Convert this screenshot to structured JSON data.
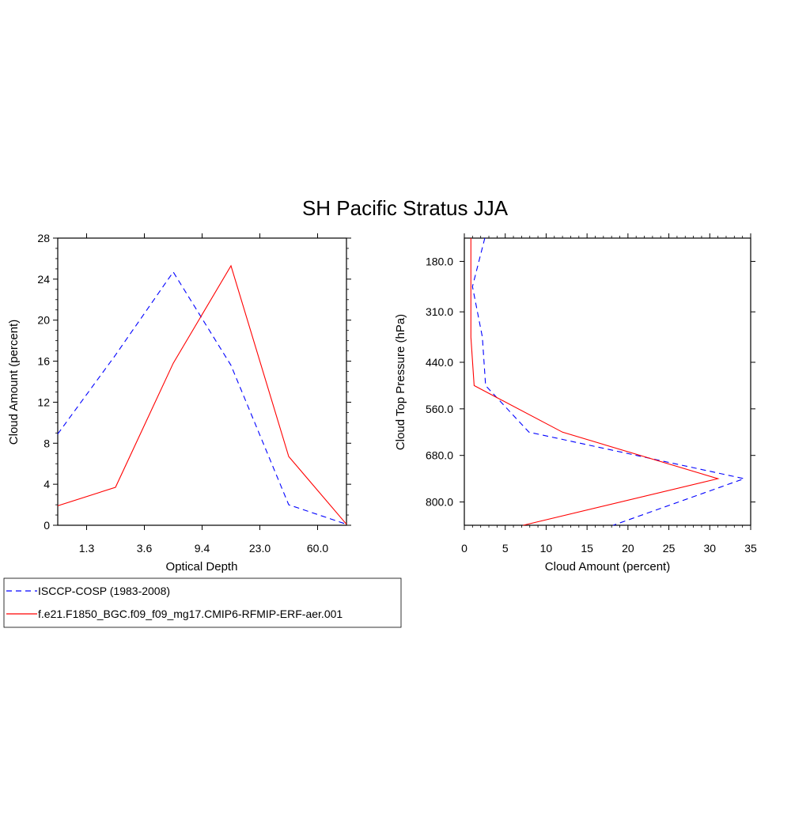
{
  "title": "SH Pacific Stratus JJA",
  "colors": {
    "isccp": "#0000ff",
    "model": "#ff0000",
    "axis": "#000000"
  },
  "legend": {
    "placement": "bottom-left",
    "entries": [
      {
        "label": "ISCCP-COSP (1983-2008)",
        "style": "dashed",
        "color": "#0000ff"
      },
      {
        "label": "f.e21.F1850_BGC.f09_f09_mg17.CMIP6-RFMIP-ERF-aer.001",
        "style": "solid",
        "color": "#ff0000"
      }
    ]
  },
  "chart_data": [
    {
      "type": "line",
      "xlabel": "Optical Depth",
      "ylabel": "Cloud Amount (percent)",
      "x_tick_labels": [
        "1.3",
        "3.6",
        "9.4",
        "23.0",
        "60.0"
      ],
      "x_bins": 6,
      "ylim": [
        0,
        28
      ],
      "y_ticks": [
        "0",
        "4",
        "8",
        "12",
        "16",
        "20",
        "24",
        "28"
      ],
      "grid": false,
      "series": [
        {
          "name": "ISCCP-COSP (1983-2008)",
          "values": [
            8.9,
            16.6,
            24.7,
            15.6,
            2.0,
            0.1
          ]
        },
        {
          "name": "f.e21.F1850_BGC.f09_f09_mg17.CMIP6-RFMIP-ERF-aer.001",
          "values": [
            1.9,
            3.7,
            15.8,
            25.3,
            6.7,
            0.1
          ]
        }
      ]
    },
    {
      "type": "line",
      "xlabel": "Cloud Amount (percent)",
      "ylabel": "Cloud Top Pressure (hPa)",
      "xlim": [
        0,
        35
      ],
      "x_ticks": [
        "0",
        "5",
        "10",
        "15",
        "20",
        "25",
        "30",
        "35"
      ],
      "ylim": [
        120,
        860
      ],
      "y_ticks": [
        "180.0",
        "310.0",
        "440.0",
        "560.0",
        "680.0",
        "800.0"
      ],
      "y_inverted": true,
      "grid": false,
      "series": [
        {
          "name": "ISCCP-COSP (1983-2008)",
          "pressure": [
            120,
            245,
            375,
            500,
            620,
            740,
            860
          ],
          "values": [
            2.5,
            1.0,
            2.2,
            2.6,
            7.9,
            34.2,
            18.2
          ]
        },
        {
          "name": "f.e21.F1850_BGC.f09_f09_mg17.CMIP6-RFMIP-ERF-aer.001",
          "pressure": [
            120,
            245,
            375,
            500,
            620,
            740,
            860
          ],
          "values": [
            0.8,
            0.8,
            0.8,
            1.2,
            12.0,
            31.0,
            7.2
          ]
        }
      ]
    }
  ]
}
